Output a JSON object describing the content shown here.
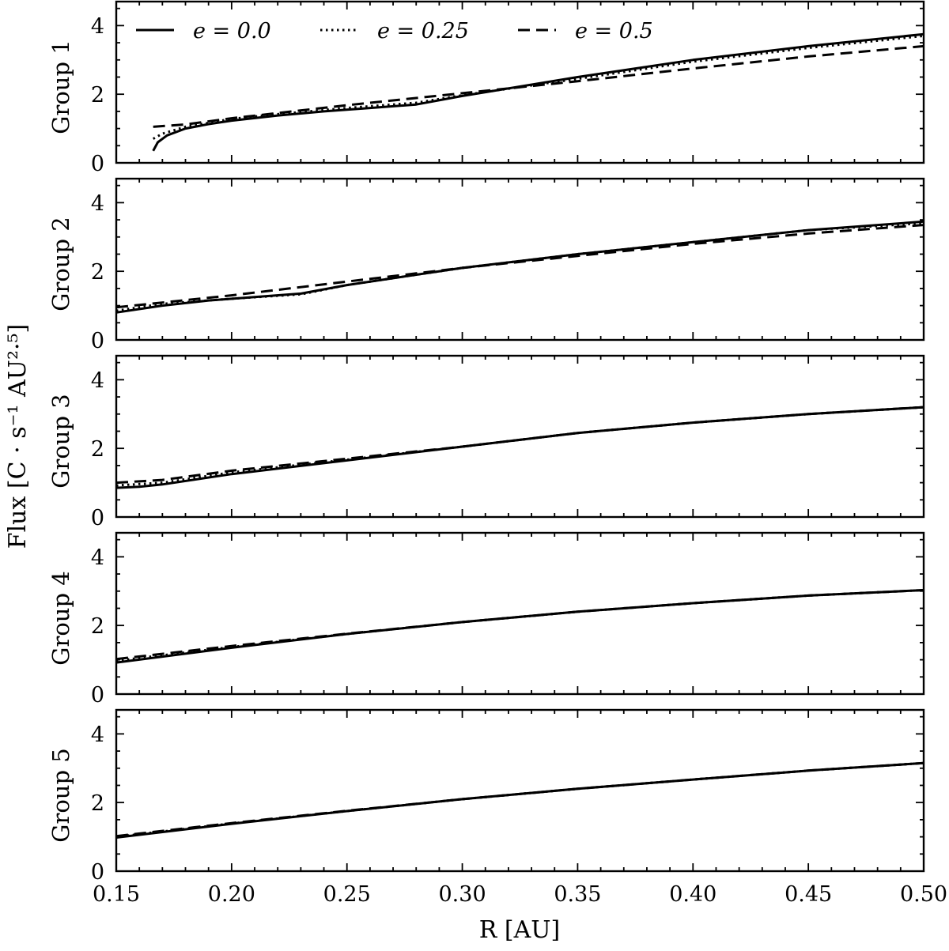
{
  "figure": {
    "x_axis_label": "R [AU]",
    "y_axis_label": "Flux [C · s⁻¹ AU²·⁵]"
  },
  "chart_data": {
    "type": "line",
    "xlabel": "R [AU]",
    "ylabel": "Flux [C · s⁻¹ AU²·⁵]",
    "xlim": [
      0.15,
      0.5
    ],
    "x_ticks": [
      0.15,
      0.2,
      0.25,
      0.3,
      0.35,
      0.4,
      0.45,
      0.5
    ],
    "x_tick_labels": [
      "0.15",
      "0.20",
      "0.25",
      "0.30",
      "0.35",
      "0.40",
      "0.45",
      "0.50"
    ],
    "ylim": [
      0,
      4.7
    ],
    "y_ticks": [
      0,
      2,
      4
    ],
    "y_tick_labels": [
      "0",
      "2",
      "4"
    ],
    "grid": false,
    "legend": {
      "placement": "top (inside first panel)",
      "entries": [
        {
          "label": "e = 0.0",
          "style": "solid"
        },
        {
          "label": "e = 0.25",
          "style": "dotted"
        },
        {
          "label": "e = 0.5",
          "style": "dashed"
        }
      ]
    },
    "panels": [
      {
        "label": "Group 1",
        "series": [
          {
            "name": "e = 0.0",
            "style": "solid",
            "x": [
              0.166,
              0.168,
              0.172,
              0.18,
              0.19,
              0.2,
              0.22,
              0.24,
              0.26,
              0.28,
              0.3,
              0.35,
              0.4,
              0.45,
              0.5
            ],
            "y": [
              0.35,
              0.6,
              0.8,
              1.0,
              1.13,
              1.23,
              1.38,
              1.5,
              1.6,
              1.7,
              1.95,
              2.5,
              3.0,
              3.4,
              3.75
            ]
          },
          {
            "name": "e = 0.25",
            "style": "dotted",
            "x": [
              0.166,
              0.17,
              0.18,
              0.2,
              0.22,
              0.25,
              0.28,
              0.3,
              0.35,
              0.4,
              0.45,
              0.5
            ],
            "y": [
              0.7,
              0.85,
              1.05,
              1.28,
              1.42,
              1.6,
              1.75,
              1.97,
              2.45,
              2.95,
              3.35,
              3.7
            ]
          },
          {
            "name": "e = 0.5",
            "style": "dashed",
            "x": [
              0.166,
              0.18,
              0.2,
              0.25,
              0.3,
              0.35,
              0.4,
              0.45,
              0.5
            ],
            "y": [
              1.05,
              1.12,
              1.3,
              1.68,
              2.03,
              2.38,
              2.75,
              3.1,
              3.4
            ]
          }
        ]
      },
      {
        "label": "Group 2",
        "series": [
          {
            "name": "e = 0.0",
            "style": "solid",
            "x": [
              0.15,
              0.17,
              0.19,
              0.21,
              0.23,
              0.25,
              0.3,
              0.35,
              0.4,
              0.45,
              0.5
            ],
            "y": [
              0.8,
              1.0,
              1.15,
              1.25,
              1.35,
              1.6,
              2.1,
              2.5,
              2.85,
              3.2,
              3.45
            ]
          },
          {
            "name": "e = 0.25",
            "style": "dotted",
            "x": [
              0.15,
              0.17,
              0.2,
              0.23,
              0.25,
              0.3,
              0.35,
              0.4,
              0.45,
              0.5
            ],
            "y": [
              0.85,
              1.05,
              1.2,
              1.33,
              1.6,
              2.1,
              2.5,
              2.85,
              3.2,
              3.4
            ]
          },
          {
            "name": "e = 0.5",
            "style": "dashed",
            "x": [
              0.15,
              0.2,
              0.25,
              0.3,
              0.35,
              0.4,
              0.45,
              0.5
            ],
            "y": [
              0.95,
              1.3,
              1.7,
              2.1,
              2.45,
              2.8,
              3.1,
              3.35
            ]
          }
        ]
      },
      {
        "label": "Group 3",
        "series": [
          {
            "name": "e = 0.0",
            "style": "solid",
            "x": [
              0.15,
              0.16,
              0.17,
              0.2,
              0.25,
              0.3,
              0.35,
              0.4,
              0.45,
              0.5
            ],
            "y": [
              0.85,
              0.88,
              0.95,
              1.25,
              1.65,
              2.05,
              2.45,
              2.75,
              3.0,
              3.2
            ]
          },
          {
            "name": "e = 0.25",
            "style": "dotted",
            "x": [
              0.15,
              0.17,
              0.2,
              0.25,
              0.3,
              0.35,
              0.4,
              0.45,
              0.5
            ],
            "y": [
              0.92,
              1.0,
              1.3,
              1.67,
              2.05,
              2.45,
              2.75,
              3.0,
              3.2
            ]
          },
          {
            "name": "e = 0.5",
            "style": "dashed",
            "x": [
              0.15,
              0.17,
              0.2,
              0.25,
              0.3,
              0.35,
              0.4,
              0.45,
              0.5
            ],
            "y": [
              1.0,
              1.08,
              1.35,
              1.7,
              2.05,
              2.45,
              2.75,
              3.0,
              3.2
            ]
          }
        ]
      },
      {
        "label": "Group 4",
        "series": [
          {
            "name": "e = 0.0",
            "style": "solid",
            "x": [
              0.15,
              0.2,
              0.25,
              0.3,
              0.35,
              0.4,
              0.45,
              0.5
            ],
            "y": [
              0.92,
              1.35,
              1.75,
              2.1,
              2.4,
              2.65,
              2.87,
              3.03
            ]
          },
          {
            "name": "e = 0.25",
            "style": "dotted",
            "x": [
              0.15,
              0.2,
              0.25,
              0.3,
              0.35,
              0.4,
              0.45,
              0.5
            ],
            "y": [
              0.97,
              1.37,
              1.75,
              2.1,
              2.4,
              2.65,
              2.87,
              3.03
            ]
          },
          {
            "name": "e = 0.5",
            "style": "dashed",
            "x": [
              0.15,
              0.2,
              0.25,
              0.3,
              0.35,
              0.4,
              0.45,
              0.5
            ],
            "y": [
              1.02,
              1.4,
              1.76,
              2.1,
              2.4,
              2.65,
              2.87,
              3.03
            ]
          }
        ]
      },
      {
        "label": "Group 5",
        "series": [
          {
            "name": "e = 0.0",
            "style": "solid",
            "x": [
              0.15,
              0.2,
              0.25,
              0.3,
              0.35,
              0.4,
              0.45,
              0.5
            ],
            "y": [
              0.98,
              1.38,
              1.75,
              2.1,
              2.4,
              2.67,
              2.93,
              3.15
            ]
          },
          {
            "name": "e = 0.25",
            "style": "dotted",
            "x": [
              0.15,
              0.2,
              0.25,
              0.3,
              0.35,
              0.4,
              0.45,
              0.5
            ],
            "y": [
              1.0,
              1.39,
              1.75,
              2.1,
              2.4,
              2.67,
              2.93,
              3.15
            ]
          },
          {
            "name": "e = 0.5",
            "style": "dashed",
            "x": [
              0.15,
              0.2,
              0.25,
              0.3,
              0.35,
              0.4,
              0.45,
              0.5
            ],
            "y": [
              1.02,
              1.4,
              1.76,
              2.1,
              2.4,
              2.67,
              2.93,
              3.15
            ]
          }
        ]
      }
    ]
  }
}
